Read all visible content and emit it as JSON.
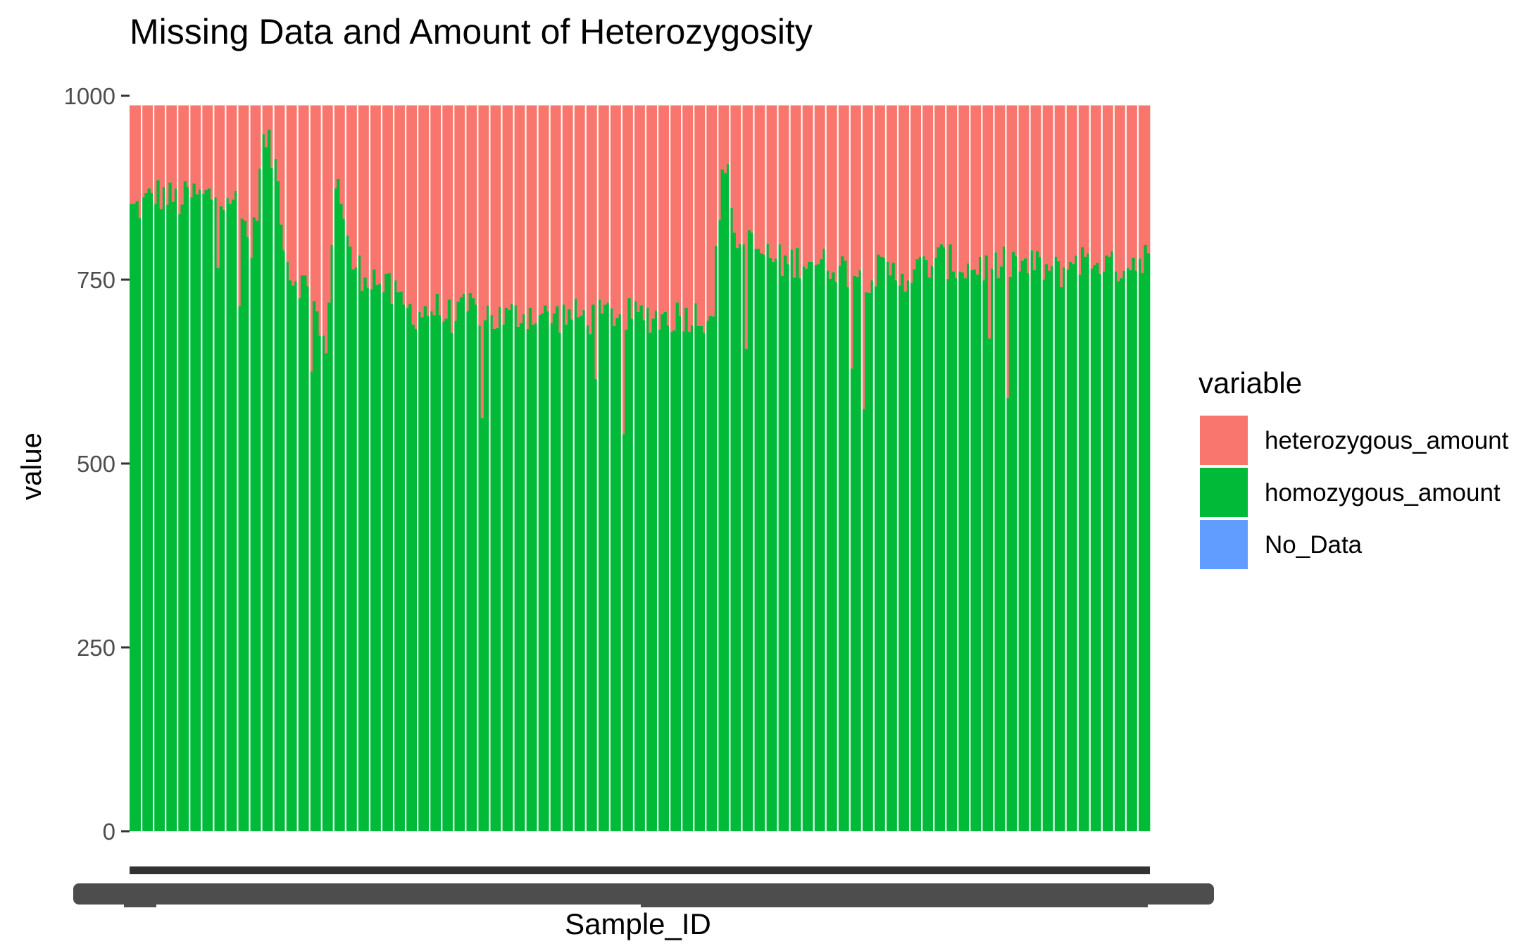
{
  "chart_data": {
    "type": "bar",
    "stacked": true,
    "title": "Missing Data and Amount of Heterozygosity",
    "xlabel": "Sample_ID",
    "ylabel": "value",
    "ylim": [
      0,
      1000
    ],
    "yticks": [
      0,
      250,
      500,
      750,
      1000
    ],
    "grid": false,
    "legend_position": "right",
    "x_tick_labels_overlapping": true,
    "n_samples": 340,
    "total_per_sample": 987,
    "legend": {
      "title": "variable",
      "items": [
        {
          "name": "heterozygous_amount",
          "color": "#F8766D"
        },
        {
          "name": "homozygous_amount",
          "color": "#00BA38"
        },
        {
          "name": "No_Data",
          "color": "#619CFF"
        }
      ]
    },
    "series": [
      {
        "name": "homozygous_amount",
        "color": "#00BA38",
        "segment_means": [
          845,
          852,
          868,
          863,
          856,
          866,
          862,
          866,
          872,
          845,
          790,
          948,
          900,
          760,
          748,
          730,
          640,
          905,
          780,
          760,
          755,
          740,
          722,
          708,
          706,
          712,
          702,
          700,
          712,
          708,
          698,
          698,
          703,
          706,
          700,
          700,
          702,
          700,
          698,
          700,
          706,
          700,
          700,
          702,
          698,
          701,
          704,
          700,
          706,
          925,
          800,
          798,
          788,
          778,
          772,
          776,
          780,
          770,
          772,
          764,
          760,
          756,
          762,
          758,
          758,
          762,
          772,
          778,
          770,
          765,
          770,
          765,
          770,
          775,
          766,
          770,
          760,
          762,
          782,
          772,
          778,
          765,
          772,
          776,
          790
        ],
        "noise_amplitude": 50
      },
      {
        "name": "heterozygous_amount",
        "color": "#F8766D",
        "values": "total_per_sample minus homozygous_amount"
      },
      {
        "name": "No_Data",
        "color": "#619CFF",
        "values": 0
      }
    ]
  }
}
